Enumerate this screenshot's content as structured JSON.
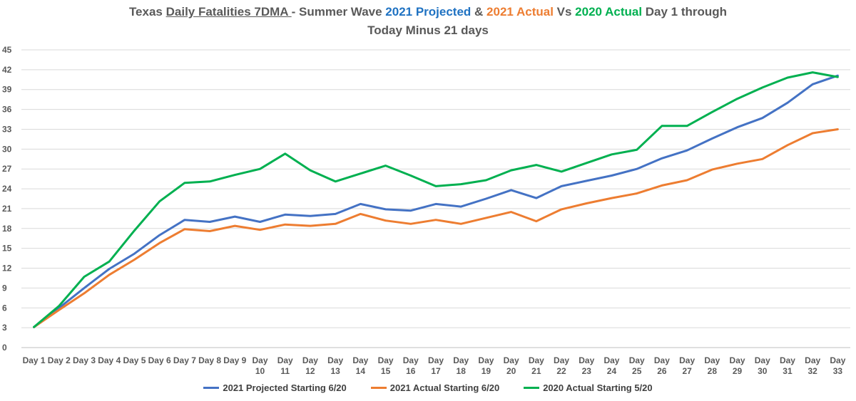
{
  "title": {
    "p1": "Texas ",
    "p2": "Daily Fatalities 7DMA ",
    "p3": "- Summer Wave ",
    "p4": "2021 Projected",
    "p5": " & ",
    "p6": "2021 Actual",
    "p7": "  Vs  ",
    "p8": "2020 Actual",
    "p9": " Day 1  through",
    "line2": "Today Minus 21 days"
  },
  "colors": {
    "projected_2021": "#4472c4",
    "actual_2021": "#ed7d31",
    "actual_2020": "#00b050",
    "grid": "#d9d9d9",
    "text": "#595959"
  },
  "chart_data": {
    "type": "line",
    "title": "Texas Daily Fatalities 7DMA - Summer Wave 2021 Projected & 2021 Actual Vs 2020 Actual Day 1 through Today Minus 21 days",
    "categories": [
      [
        "Day 1"
      ],
      [
        "Day 2"
      ],
      [
        "Day 3"
      ],
      [
        "Day 4"
      ],
      [
        "Day 5"
      ],
      [
        "Day 6"
      ],
      [
        "Day 7"
      ],
      [
        "Day 8"
      ],
      [
        "Day 9"
      ],
      [
        "Day",
        "10"
      ],
      [
        "Day",
        "11"
      ],
      [
        "Day",
        "12"
      ],
      [
        "Day",
        "13"
      ],
      [
        "Day",
        "14"
      ],
      [
        "Day",
        "15"
      ],
      [
        "Day",
        "16"
      ],
      [
        "Day",
        "17"
      ],
      [
        "Day",
        "18"
      ],
      [
        "Day",
        "19"
      ],
      [
        "Day",
        "20"
      ],
      [
        "Day",
        "21"
      ],
      [
        "Day",
        "22"
      ],
      [
        "Day",
        "23"
      ],
      [
        "Day",
        "24"
      ],
      [
        "Day",
        "25"
      ],
      [
        "Day",
        "26"
      ],
      [
        "Day",
        "27"
      ],
      [
        "Day",
        "28"
      ],
      [
        "Day",
        "29"
      ],
      [
        "Day",
        "30"
      ],
      [
        "Day",
        "31"
      ],
      [
        "Day",
        "32"
      ],
      [
        "Day",
        "33"
      ]
    ],
    "ylim": [
      0,
      45
    ],
    "yticks": [
      0,
      3,
      6,
      9,
      12,
      15,
      18,
      21,
      24,
      27,
      30,
      33,
      36,
      39,
      42,
      45
    ],
    "grid": true,
    "legend_position": "bottom",
    "series": [
      {
        "name": "2021 Projected Starting 6/20",
        "color": "#4472c4",
        "values": [
          3.1,
          6.0,
          9.0,
          11.9,
          14.2,
          17.0,
          19.3,
          19.0,
          19.8,
          19.0,
          20.1,
          19.9,
          20.2,
          21.7,
          20.9,
          20.7,
          21.7,
          21.3,
          22.5,
          23.8,
          22.6,
          24.4,
          25.2,
          26.0,
          27.0,
          28.6,
          29.8,
          31.6,
          33.3,
          34.7,
          37.0,
          39.8,
          41.1
        ]
      },
      {
        "name": "2021 Actual Starting 6/20",
        "color": "#ed7d31",
        "values": [
          3.1,
          5.7,
          8.2,
          11.0,
          13.3,
          15.8,
          17.9,
          17.6,
          18.4,
          17.8,
          18.6,
          18.4,
          18.7,
          20.2,
          19.2,
          18.7,
          19.3,
          18.7,
          19.6,
          20.5,
          19.1,
          20.9,
          21.8,
          22.6,
          23.3,
          24.5,
          25.3,
          26.9,
          27.8,
          28.5,
          30.6,
          32.4,
          33.0
        ]
      },
      {
        "name": "2020 Actual Starting 5/20",
        "color": "#00b050",
        "values": [
          3.1,
          6.3,
          10.7,
          13.0,
          17.7,
          22.1,
          24.9,
          25.1,
          26.1,
          27.0,
          29.3,
          26.8,
          25.1,
          26.3,
          27.5,
          26.0,
          24.4,
          24.7,
          25.3,
          26.8,
          27.6,
          26.6,
          27.9,
          29.2,
          29.9,
          33.5,
          33.5,
          35.6,
          37.6,
          39.3,
          40.8,
          41.6,
          40.9
        ]
      }
    ]
  }
}
